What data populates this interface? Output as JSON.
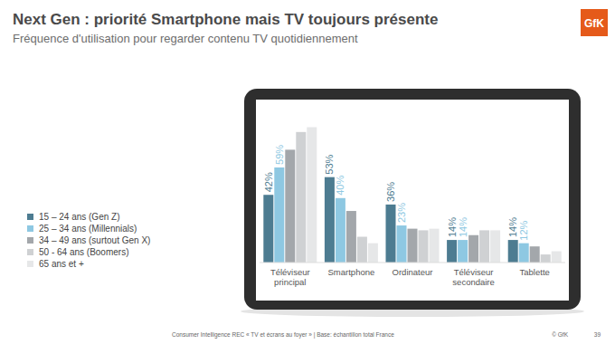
{
  "chart_data": {
    "type": "bar",
    "title": "Next Gen : priorité Smartphone mais TV toujours présente",
    "subtitle": "Fréquence d'utilisation pour regarder contenu TV quotidiennement",
    "categories": [
      "Téléviseur principal",
      "Smartphone",
      "Ordinateur",
      "Téléviseur secondaire",
      "Tablette"
    ],
    "series": [
      {
        "name": "15 – 24 ans (Gen Z)",
        "color": "#4d7c91",
        "values": [
          42,
          53,
          36,
          14,
          14
        ],
        "value_labels": [
          "42%",
          "53%",
          "36%",
          "14%",
          "14%"
        ],
        "data_labels": true
      },
      {
        "name": "25 – 34 ans (Millennials)",
        "color": "#8ec8e2",
        "values": [
          59,
          40,
          23,
          14,
          12
        ],
        "value_labels": [
          "59%",
          "40%",
          "23%",
          "14%",
          "12%"
        ],
        "data_labels": true
      },
      {
        "name": "34 – 49 ans (surtout Gen X)",
        "color": "#a3a7ab",
        "values": [
          70,
          32,
          21,
          17,
          10
        ]
      },
      {
        "name": "50 - 64 ans (Boomers)",
        "color": "#cfd1d3",
        "values": [
          81,
          16,
          20,
          20,
          5
        ]
      },
      {
        "name": "65 ans et +",
        "color": "#e6e7e8",
        "values": [
          84,
          12,
          21,
          20,
          7
        ]
      }
    ],
    "ylim": [
      0,
      100
    ],
    "tick_labels": false,
    "legend": "left"
  },
  "logo": "GfK",
  "source": "Consumer Intelligence REC « TV et écrans au foyer » | Base: échantillon total France",
  "copyright": "© GfK",
  "page": "39"
}
